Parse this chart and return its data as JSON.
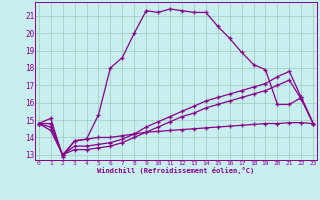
{
  "xlabel": "Windchill (Refroidissement éolien,°C)",
  "x_hours": [
    0,
    1,
    2,
    3,
    4,
    5,
    6,
    7,
    8,
    9,
    10,
    11,
    12,
    13,
    14,
    15,
    16,
    17,
    18,
    19,
    20,
    21,
    22,
    23
  ],
  "line1": [
    14.8,
    15.1,
    12.9,
    13.8,
    13.9,
    15.3,
    18.0,
    18.6,
    20.0,
    21.3,
    21.2,
    21.4,
    21.3,
    21.2,
    21.2,
    20.4,
    19.7,
    18.9,
    18.2,
    17.9,
    15.9,
    15.9,
    16.3,
    14.8
  ],
  "line2": [
    14.8,
    14.8,
    13.0,
    13.8,
    13.9,
    14.0,
    14.0,
    14.1,
    14.2,
    14.3,
    14.35,
    14.4,
    14.45,
    14.5,
    14.55,
    14.6,
    14.65,
    14.7,
    14.75,
    14.8,
    14.8,
    14.85,
    14.85,
    14.8
  ],
  "line3": [
    14.8,
    14.6,
    13.0,
    13.5,
    13.5,
    13.6,
    13.7,
    13.9,
    14.2,
    14.6,
    14.9,
    15.2,
    15.5,
    15.8,
    16.1,
    16.3,
    16.5,
    16.7,
    16.9,
    17.1,
    17.5,
    17.8,
    16.3,
    14.8
  ],
  "line4": [
    14.8,
    14.4,
    13.0,
    13.3,
    13.3,
    13.4,
    13.5,
    13.7,
    14.0,
    14.3,
    14.6,
    14.9,
    15.2,
    15.4,
    15.7,
    15.9,
    16.1,
    16.3,
    16.5,
    16.7,
    17.0,
    17.3,
    16.2,
    14.8
  ],
  "line_color": "#880088",
  "bg_color": "#c8eef0",
  "grid_color": "#99ccbb",
  "yticks": [
    13,
    14,
    15,
    16,
    17,
    18,
    19,
    20,
    21
  ],
  "xticks": [
    0,
    1,
    2,
    3,
    4,
    5,
    6,
    7,
    8,
    9,
    10,
    11,
    12,
    13,
    14,
    15,
    16,
    17,
    18,
    19,
    20,
    21,
    22,
    23
  ],
  "xlim": [
    -0.3,
    23.3
  ],
  "ylim": [
    12.7,
    21.8
  ]
}
